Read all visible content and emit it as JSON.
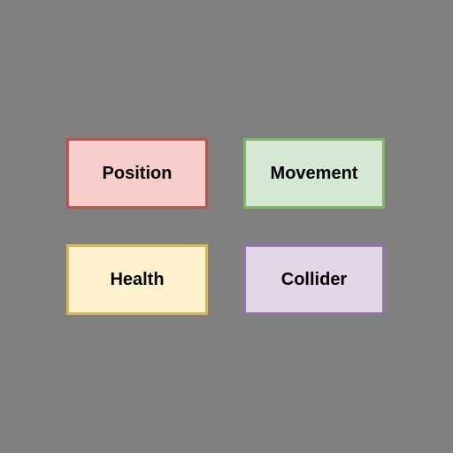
{
  "background_color": "#808080",
  "components": [
    {
      "label": "Position",
      "fill": "#f8cecc",
      "border": "#b85450"
    },
    {
      "label": "Movement",
      "fill": "#d5e8d4",
      "border": "#82b366"
    },
    {
      "label": "Health",
      "fill": "#fff2cc",
      "border": "#d6b656"
    },
    {
      "label": "Collider",
      "fill": "#e1d5e7",
      "border": "#9673a6"
    }
  ]
}
